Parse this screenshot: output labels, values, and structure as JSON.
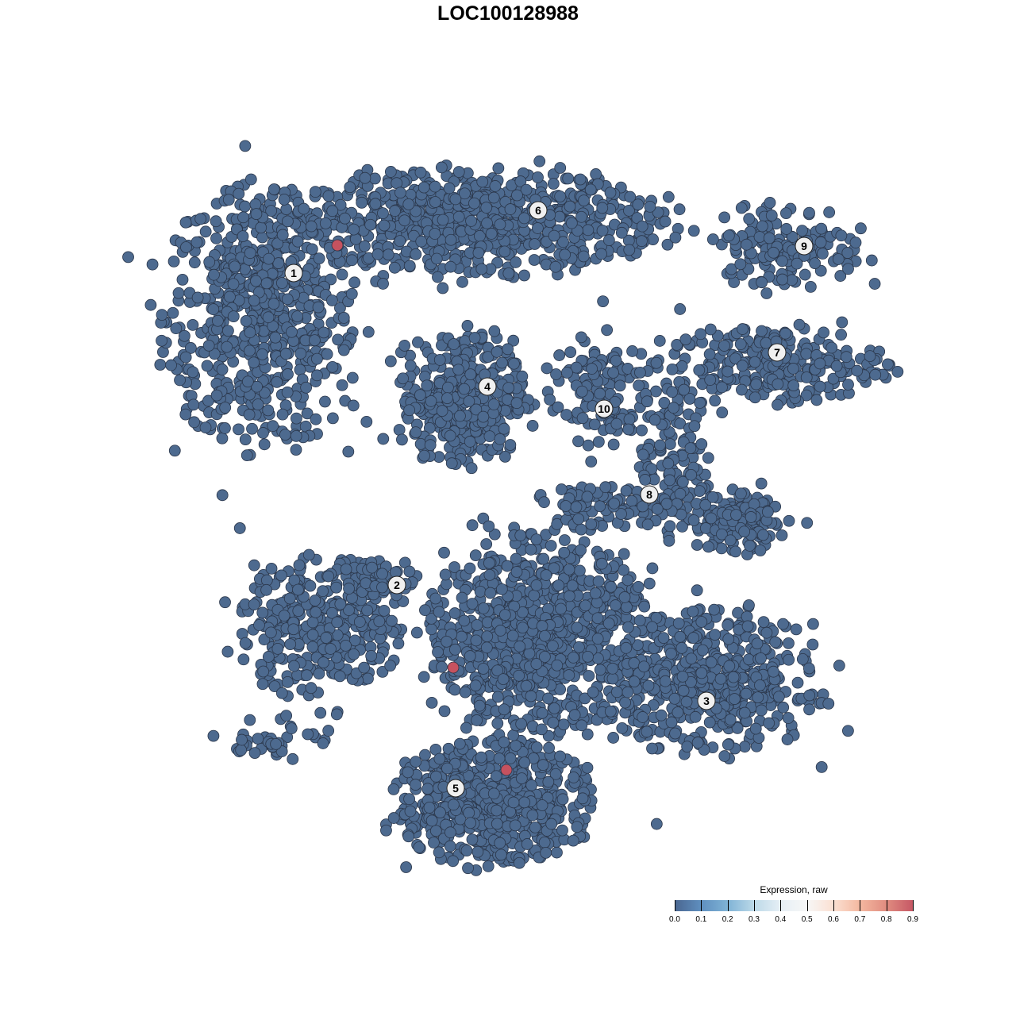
{
  "chart_data": {
    "type": "scatter",
    "title": "LOC100128988",
    "xlabel": "",
    "ylabel": "",
    "grid": false,
    "axes_visible": false,
    "point_color_default": "#4d6a8f",
    "point_color_high": "#c6525f",
    "clusters": [
      {
        "id": "1",
        "label_pos": [
          -27,
          29.6
        ],
        "center": [
          -31,
          24
        ],
        "spread": [
          11,
          15
        ],
        "count": 650
      },
      {
        "id": "6",
        "label_pos": [
          3.8,
          37.5
        ],
        "center": [
          -4,
          36
        ],
        "spread": [
          21,
          6
        ],
        "count": 750
      },
      {
        "id": "4",
        "label_pos": [
          -2.6,
          15.3
        ],
        "center": [
          -5.5,
          14
        ],
        "spread": [
          7,
          8
        ],
        "count": 380
      },
      {
        "id": "9",
        "label_pos": [
          37.3,
          33
        ],
        "center": [
          35,
          33
        ],
        "spread": [
          9,
          5
        ],
        "count": 150
      },
      {
        "id": "7",
        "label_pos": [
          33.9,
          19.6
        ],
        "center": [
          33,
          18
        ],
        "spread": [
          13,
          4.5
        ],
        "count": 250
      },
      {
        "id": "10",
        "label_pos": [
          12.1,
          12.5
        ],
        "center": [
          11,
          15
        ],
        "spread": [
          6,
          7
        ],
        "count": 120
      },
      {
        "id": "8",
        "label_pos": [
          17.8,
          1.7
        ],
        "center": [
          21,
          6
        ],
        "spread": [
          4,
          9
        ],
        "count": 130
      },
      {
        "id": "2",
        "label_pos": [
          -14,
          -9.7
        ],
        "center": [
          -24,
          -15
        ],
        "spread": [
          9,
          8
        ],
        "count": 320
      },
      {
        "id": "3",
        "label_pos": [
          25,
          -24.3
        ],
        "center": [
          26,
          -22
        ],
        "spread": [
          12,
          8
        ],
        "count": 500
      },
      {
        "id": "5",
        "label_pos": [
          -6.6,
          -35.3
        ],
        "center": [
          -2,
          -37
        ],
        "spread": [
          11,
          7
        ],
        "count": 600
      }
    ],
    "extra_groups": [
      {
        "center": [
          4,
          -16
        ],
        "spread": [
          13,
          11
        ],
        "count": 900
      },
      {
        "center": [
          29,
          -2
        ],
        "spread": [
          5.5,
          3.5
        ],
        "count": 150
      },
      {
        "center": [
          12,
          0
        ],
        "spread": [
          8,
          2.5
        ],
        "count": 90
      },
      {
        "center": [
          -17,
          -9
        ],
        "spread": [
          5,
          2.5
        ],
        "count": 70
      },
      {
        "center": [
          -29,
          -29
        ],
        "spread": [
          6,
          2.5
        ],
        "count": 40
      }
    ],
    "highlighted_points": [
      {
        "x": -21.5,
        "y": 33.1,
        "value": 0.9
      },
      {
        "x": -6.9,
        "y": -20.1,
        "value": 0.9
      },
      {
        "x": -0.2,
        "y": -33,
        "value": 0.9
      }
    ],
    "legend": {
      "title": "Expression, raw",
      "placement": "bottom-right",
      "ticks": [
        "0.0",
        "0.1",
        "0.2",
        "0.3",
        "0.4",
        "0.5",
        "0.6",
        "0.7",
        "0.8",
        "0.9"
      ],
      "range": [
        0,
        0.9
      ],
      "colors": [
        "#4a6690",
        "#f7f7f7",
        "#c65865"
      ]
    }
  }
}
